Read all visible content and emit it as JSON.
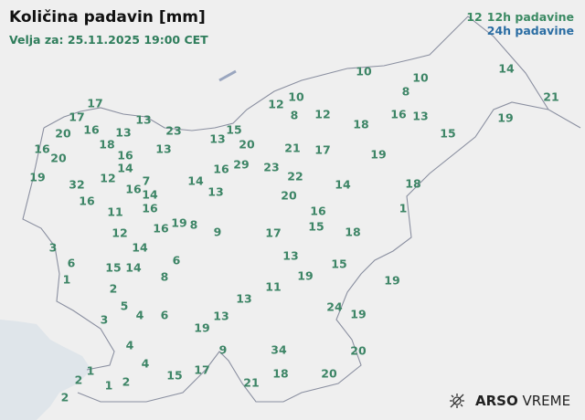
{
  "header": {
    "title": "Količina padavin [mm]",
    "valid_time": "Velja za: 25.11.2025 19:00 CET"
  },
  "legend": {
    "label_12h": "12h padavine",
    "label_24h": "24h padavine",
    "sample_value": "12",
    "color_12h": "#3b8a63",
    "color_24h": "#2a6da3"
  },
  "logo": {
    "brand_bold": "ARSO",
    "brand_light": "VREME",
    "icon": "sun-cloud-icon"
  },
  "stations": [
    "17",
    "17",
    "20",
    "16",
    "13",
    "13",
    "23",
    "16",
    "20",
    "18",
    "16",
    "13",
    "14",
    "19",
    "32",
    "12",
    "16",
    "7",
    "14",
    "16",
    "16",
    "11",
    "14",
    "16",
    "19",
    "8",
    "9",
    "12",
    "3",
    "14",
    "6",
    "15",
    "14",
    "6",
    "1",
    "8",
    "2",
    "5",
    "4",
    "6",
    "3",
    "13",
    "13",
    "19",
    "4",
    "9",
    "4",
    "17",
    "15",
    "1",
    "2",
    "1",
    "2",
    "2",
    "21",
    "10",
    "12",
    "10",
    "8",
    "12",
    "18",
    "13",
    "15",
    "20",
    "21",
    "17",
    "19",
    "16",
    "29",
    "23",
    "22",
    "14",
    "18",
    "20",
    "16",
    "1",
    "15",
    "18",
    "17",
    "13",
    "10",
    "8",
    "16",
    "13",
    "15",
    "14",
    "21",
    "19",
    "13",
    "15",
    "19",
    "11",
    "19",
    "24",
    "19",
    "34",
    "20",
    "18",
    "20"
  ]
}
